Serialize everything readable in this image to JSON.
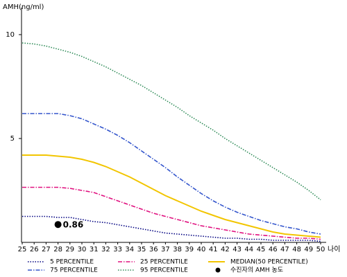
{
  "chart_data": {
    "type": "line",
    "y_label": "AMH(ng/ml)",
    "x_label": "나이",
    "x": [
      25,
      26,
      27,
      28,
      29,
      30,
      31,
      32,
      33,
      34,
      35,
      36,
      37,
      38,
      39,
      40,
      41,
      42,
      43,
      44,
      45,
      46,
      47,
      48,
      49,
      50
    ],
    "xlim": [
      25,
      50
    ],
    "xticks": [
      25,
      26,
      27,
      28,
      29,
      30,
      31,
      32,
      33,
      34,
      35,
      36,
      37,
      38,
      39,
      40,
      41,
      42,
      43,
      44,
      45,
      46,
      47,
      48,
      49,
      50
    ],
    "ylim": [
      0,
      11.3
    ],
    "yticks": [
      5,
      10
    ],
    "series": [
      {
        "name": "5 PERCENTILE",
        "color": "#000080",
        "style": "dotted",
        "values": [
          1.25,
          1.25,
          1.25,
          1.2,
          1.2,
          1.1,
          1.0,
          0.95,
          0.85,
          0.75,
          0.65,
          0.55,
          0.45,
          0.4,
          0.35,
          0.3,
          0.25,
          0.2,
          0.2,
          0.15,
          0.15,
          0.1,
          0.1,
          0.1,
          0.1,
          0.05
        ]
      },
      {
        "name": "25 PERCENTILE",
        "color": "#e0107f",
        "style": "dashdot",
        "values": [
          2.65,
          2.65,
          2.65,
          2.65,
          2.6,
          2.5,
          2.4,
          2.2,
          2.0,
          1.8,
          1.6,
          1.4,
          1.25,
          1.1,
          0.95,
          0.8,
          0.7,
          0.6,
          0.5,
          0.4,
          0.35,
          0.3,
          0.25,
          0.2,
          0.2,
          0.15
        ]
      },
      {
        "name": "MEDIAN(50 PERCENTILE)",
        "color": "#f2c500",
        "style": "solid",
        "values": [
          4.2,
          4.2,
          4.2,
          4.15,
          4.1,
          4.0,
          3.85,
          3.65,
          3.4,
          3.15,
          2.85,
          2.55,
          2.25,
          2.0,
          1.75,
          1.5,
          1.3,
          1.1,
          0.95,
          0.8,
          0.65,
          0.5,
          0.4,
          0.35,
          0.3,
          0.25
        ]
      },
      {
        "name": "75 PERCENTILE",
        "color": "#3355cc",
        "style": "dashdot",
        "values": [
          6.2,
          6.2,
          6.2,
          6.2,
          6.1,
          5.95,
          5.7,
          5.45,
          5.15,
          4.8,
          4.4,
          4.0,
          3.6,
          3.15,
          2.75,
          2.35,
          2.0,
          1.7,
          1.45,
          1.25,
          1.05,
          0.9,
          0.75,
          0.65,
          0.5,
          0.4
        ]
      },
      {
        "name": "95 PERCENTILE",
        "color": "#2e8b57",
        "style": "dotted",
        "values": [
          9.6,
          9.55,
          9.45,
          9.3,
          9.15,
          8.95,
          8.7,
          8.45,
          8.15,
          7.85,
          7.55,
          7.2,
          6.85,
          6.5,
          6.1,
          5.75,
          5.4,
          5.0,
          4.65,
          4.3,
          3.95,
          3.6,
          3.25,
          2.9,
          2.5,
          2.05
        ]
      }
    ],
    "point": {
      "name": "수진자의 AMH 농도",
      "x": 28,
      "value": 0.86,
      "color": "#000000"
    }
  }
}
